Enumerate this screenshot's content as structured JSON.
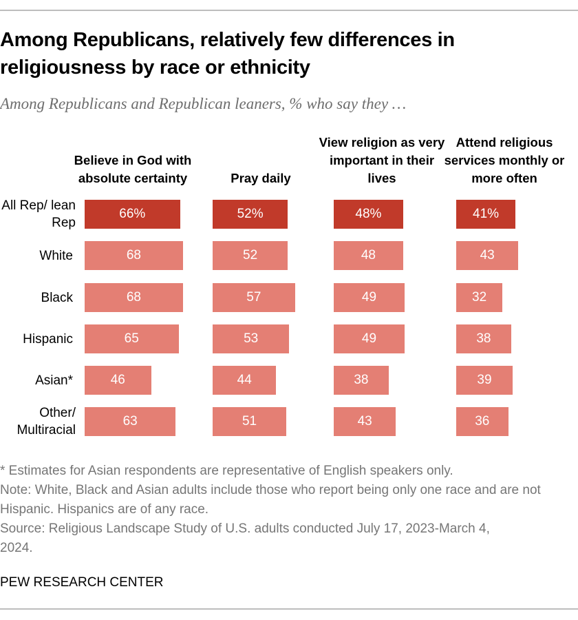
{
  "title": "Among Republicans, relatively few differences in religiousness by race or ethnicity",
  "subtitle": "Among Republicans and Republican leaners, % who say they …",
  "chart_data": {
    "type": "bar",
    "orientation": "horizontal",
    "panels": [
      "Believe in God with absolute certainty",
      "Pray daily",
      "View religion as very important in their lives",
      "Attend religious services monthly or more often"
    ],
    "categories": [
      "All Rep/ lean Rep",
      "White",
      "Black",
      "Hispanic",
      "Asian*",
      "Other/ Multiracial"
    ],
    "values": [
      [
        66,
        52,
        48,
        41
      ],
      [
        68,
        52,
        48,
        43
      ],
      [
        68,
        57,
        49,
        32
      ],
      [
        65,
        53,
        49,
        38
      ],
      [
        46,
        44,
        38,
        39
      ],
      [
        63,
        51,
        43,
        36
      ]
    ],
    "total_label_suffix": "%",
    "xlim": [
      0,
      100
    ],
    "colors": {
      "total": "#C13A2A",
      "subgroup": "#E47F74"
    }
  },
  "notes": [
    "* Estimates for Asian respondents are representative of English speakers only.",
    "Note: White, Black and Asian adults include those who report being only one race and are not Hispanic. Hispanics are of any race.",
    "Source: Religious Landscape Study of U.S. adults conducted July 17, 2023-March 4, 2024."
  ],
  "credit": "PEW RESEARCH CENTER"
}
